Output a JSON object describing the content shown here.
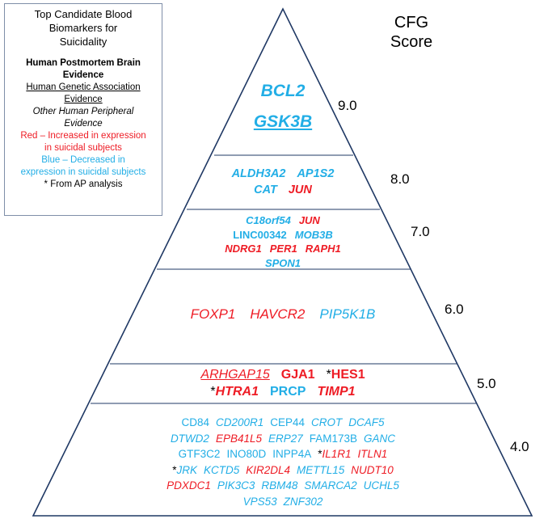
{
  "legend": {
    "title_line1": "Top Candidate Blood",
    "title_line2": "Biomarkers for",
    "title_line3": "Suicidality",
    "brain_line1": "Human Postmortem Brain",
    "brain_line2": "Evidence",
    "genetic_line1": "Human Genetic  Association",
    "genetic_line2": "Evidence",
    "peripheral_line1": "Other Human Peripheral",
    "peripheral_line2": "Evidence",
    "red_line1": "Red – Increased in expression",
    "red_line2": "in suicidal subjects",
    "blue_line1": "Blue – Decreased in",
    "blue_line2": "expression in suicidal subjects",
    "ap_note": "* From AP analysis"
  },
  "score_header_line1": "CFG",
  "score_header_line2": "Score",
  "colors": {
    "red": "#ee1c25",
    "blue": "#22aee6",
    "outline": "#1f3864"
  },
  "tiers": [
    {
      "score": "9.0",
      "rows": [
        [
          {
            "t": "BCL2",
            "c": "blue",
            "s": "bi"
          }
        ],
        [
          {
            "t": "GSK3B",
            "c": "blue",
            "s": "biu"
          }
        ]
      ]
    },
    {
      "score": "8.0",
      "rows": [
        [
          {
            "t": "ALDH3A2",
            "c": "blue",
            "s": "bi"
          },
          {
            "t": "AP1S2",
            "c": "blue",
            "s": "bi"
          }
        ],
        [
          {
            "t": "CAT",
            "c": "blue",
            "s": "bi"
          },
          {
            "t": "JUN",
            "c": "red",
            "s": "bi"
          }
        ]
      ]
    },
    {
      "score": "7.0",
      "rows": [
        [
          {
            "t": "C18orf54",
            "c": "blue",
            "s": "bi"
          },
          {
            "t": "JUN",
            "c": "red",
            "s": "bi"
          }
        ],
        [
          {
            "t": "LINC00342",
            "c": "blue",
            "s": "b"
          },
          {
            "t": "MOB3B",
            "c": "blue",
            "s": "bi"
          }
        ],
        [
          {
            "t": "NDRG1",
            "c": "red",
            "s": "bi"
          },
          {
            "t": "PER1",
            "c": "red",
            "s": "bi"
          },
          {
            "t": "RAPH1",
            "c": "red",
            "s": "bi"
          }
        ],
        [
          {
            "t": "SPON1",
            "c": "blue",
            "s": "bi"
          }
        ]
      ]
    },
    {
      "score": "6.0",
      "rows": [
        [
          {
            "t": "FOXP1",
            "c": "red",
            "s": "i"
          },
          {
            "t": "HAVCR2",
            "c": "red",
            "s": "i"
          },
          {
            "t": "PIP5K1B",
            "c": "blue",
            "s": "i"
          }
        ]
      ]
    },
    {
      "score": "5.0",
      "rows": [
        [
          {
            "t": "ARHGAP15",
            "c": "red",
            "s": "iu"
          },
          {
            "t": "GJA1",
            "c": "red",
            "s": "b"
          },
          {
            "t": "HES1",
            "c": "red",
            "s": "b",
            "ap": true
          }
        ],
        [
          {
            "t": "HTRA1",
            "c": "red",
            "s": "bi",
            "ap": true
          },
          {
            "t": "PRCP",
            "c": "blue",
            "s": "b"
          },
          {
            "t": "TIMP1",
            "c": "red",
            "s": "bi"
          }
        ]
      ]
    },
    {
      "score": "4.0",
      "rows": [
        [
          {
            "t": "CD84",
            "c": "blue",
            "s": ""
          },
          {
            "t": "CD200R1",
            "c": "blue",
            "s": "i"
          },
          {
            "t": "CEP44",
            "c": "blue",
            "s": ""
          },
          {
            "t": "CROT",
            "c": "blue",
            "s": "i"
          },
          {
            "t": "DCAF5",
            "c": "blue",
            "s": "i"
          }
        ],
        [
          {
            "t": "DTWD2",
            "c": "blue",
            "s": "i"
          },
          {
            "t": "EPB41L5",
            "c": "red",
            "s": "i"
          },
          {
            "t": "ERP27",
            "c": "blue",
            "s": "i"
          },
          {
            "t": "FAM173B",
            "c": "blue",
            "s": ""
          },
          {
            "t": "GANC",
            "c": "blue",
            "s": "i"
          }
        ],
        [
          {
            "t": "GTF3C2",
            "c": "blue",
            "s": ""
          },
          {
            "t": "INO80D",
            "c": "blue",
            "s": ""
          },
          {
            "t": "INPP4A",
            "c": "blue",
            "s": ""
          },
          {
            "t": "IL1R1",
            "c": "red",
            "s": "i",
            "ap": true
          },
          {
            "t": "ITLN1",
            "c": "red",
            "s": "i"
          }
        ],
        [
          {
            "t": "JRK",
            "c": "blue",
            "s": "i",
            "ap": true
          },
          {
            "t": "KCTD5",
            "c": "blue",
            "s": "i"
          },
          {
            "t": "KIR2DL4",
            "c": "red",
            "s": "i"
          },
          {
            "t": "METTL15",
            "c": "blue",
            "s": "i"
          },
          {
            "t": "NUDT10",
            "c": "red",
            "s": "i"
          }
        ],
        [
          {
            "t": "PDXDC1",
            "c": "red",
            "s": "i"
          },
          {
            "t": "PIK3C3",
            "c": "blue",
            "s": "i"
          },
          {
            "t": "RBM48",
            "c": "blue",
            "s": "i"
          },
          {
            "t": "SMARCA2",
            "c": "blue",
            "s": "i"
          },
          {
            "t": "UCHL5",
            "c": "blue",
            "s": "i"
          }
        ],
        [
          {
            "t": "VPS53",
            "c": "blue",
            "s": "i"
          },
          {
            "t": "ZNF302",
            "c": "blue",
            "s": "i"
          }
        ]
      ]
    }
  ],
  "asterisk": "*"
}
